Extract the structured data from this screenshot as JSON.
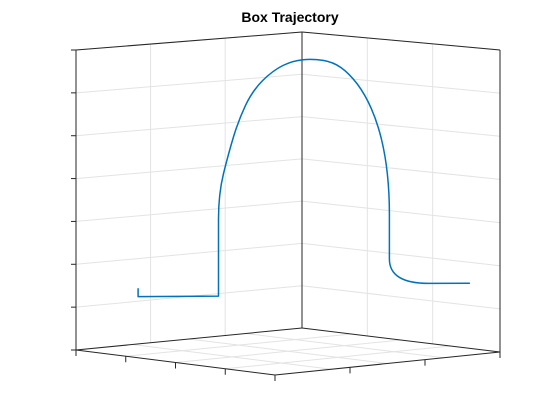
{
  "chart_data": {
    "type": "line",
    "title": "Box Trajectory",
    "xlabel": "",
    "ylabel": "",
    "zlabel": "",
    "view": "3d",
    "grid": true,
    "series": [
      {
        "color": "#0072BD",
        "points_3d": [
          [
            0.05,
            0.0,
            0.18
          ],
          [
            0.05,
            0.0,
            0.13
          ],
          [
            0.45,
            0.0,
            0.13
          ],
          [
            0.45,
            0.0,
            0.45
          ],
          [
            0.45,
            0.0,
            0.75
          ],
          [
            0.5,
            0.0,
            1.0
          ],
          [
            0.55,
            0.0,
            1.2
          ],
          [
            0.62,
            0.0,
            1.38
          ],
          [
            0.72,
            0.0,
            1.5
          ],
          [
            0.82,
            0.0,
            1.56
          ],
          [
            0.92,
            0.0,
            1.57
          ],
          [
            1.02,
            0.0,
            1.55
          ],
          [
            1.1,
            0.0,
            1.48
          ],
          [
            1.18,
            0.0,
            1.35
          ],
          [
            1.24,
            0.0,
            1.18
          ],
          [
            1.28,
            0.0,
            0.98
          ],
          [
            1.3,
            0.0,
            0.75
          ],
          [
            1.3,
            0.0,
            0.5
          ],
          [
            1.3,
            0.0,
            0.2
          ],
          [
            1.7,
            0.0,
            0.2
          ]
        ]
      }
    ]
  }
}
